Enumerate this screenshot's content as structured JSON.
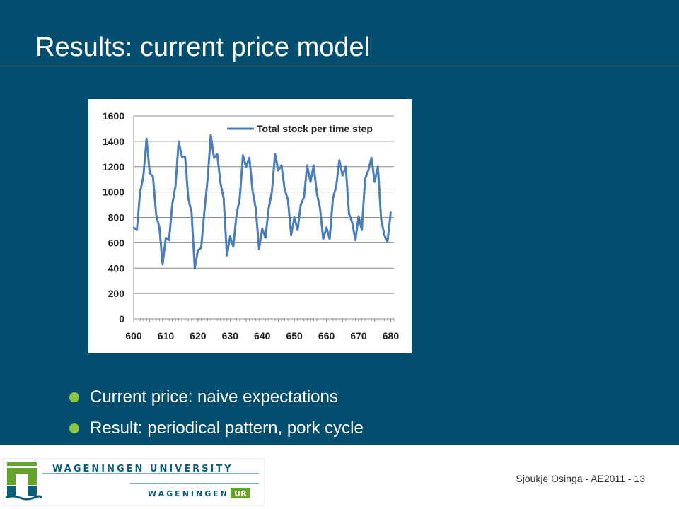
{
  "slide": {
    "title": "Results: current price model",
    "bullets": [
      "Current price: naive expectations",
      "Result: periodical pattern, pork cycle"
    ],
    "colors": {
      "background": "#044f6f",
      "bullet": "#8cc63e",
      "line": "#4a7ebb"
    }
  },
  "footer": {
    "text": "Sjoukje Osinga - AE2011 - 13",
    "logo": {
      "line1": "WAGENINGEN UNIVERSITY",
      "line2a": "WAGENINGEN",
      "line2b": "UR"
    }
  },
  "chart_data": {
    "type": "line",
    "title": "",
    "xlabel": "",
    "ylabel": "",
    "xlim": [
      600,
      681
    ],
    "ylim": [
      0,
      1600
    ],
    "x_ticks": [
      600,
      610,
      620,
      630,
      640,
      650,
      660,
      670,
      680
    ],
    "y_ticks": [
      0,
      200,
      400,
      600,
      800,
      1000,
      1200,
      1400,
      1600
    ],
    "grid": "horizontal",
    "legend_position": "top-right",
    "series": [
      {
        "name": "Total stock per time step",
        "x": [
          600,
          601,
          602,
          603,
          604,
          605,
          606,
          607,
          608,
          609,
          610,
          611,
          612,
          613,
          614,
          615,
          616,
          617,
          618,
          619,
          620,
          621,
          622,
          623,
          624,
          625,
          626,
          627,
          628,
          629,
          630,
          631,
          632,
          633,
          634,
          635,
          636,
          637,
          638,
          639,
          640,
          641,
          642,
          643,
          644,
          645,
          646,
          647,
          648,
          649,
          650,
          651,
          652,
          653,
          654,
          655,
          656,
          657,
          658,
          659,
          660,
          661,
          662,
          663,
          664,
          665,
          666,
          667,
          668,
          669,
          670,
          671,
          672,
          673,
          674,
          675,
          676,
          677,
          678,
          679,
          680
        ],
        "values": [
          720,
          700,
          1000,
          1120,
          1420,
          1150,
          1120,
          820,
          720,
          430,
          640,
          620,
          900,
          1050,
          1400,
          1280,
          1280,
          950,
          840,
          400,
          540,
          560,
          850,
          1100,
          1450,
          1270,
          1300,
          1070,
          950,
          500,
          650,
          570,
          820,
          950,
          1290,
          1200,
          1270,
          1010,
          870,
          550,
          710,
          640,
          870,
          1000,
          1300,
          1170,
          1210,
          1020,
          940,
          660,
          800,
          700,
          900,
          960,
          1210,
          1080,
          1210,
          990,
          870,
          630,
          720,
          630,
          950,
          1040,
          1250,
          1130,
          1200,
          830,
          760,
          620,
          810,
          700,
          1100,
          1170,
          1270,
          1080,
          1200,
          790,
          660,
          610,
          840
        ]
      }
    ]
  }
}
